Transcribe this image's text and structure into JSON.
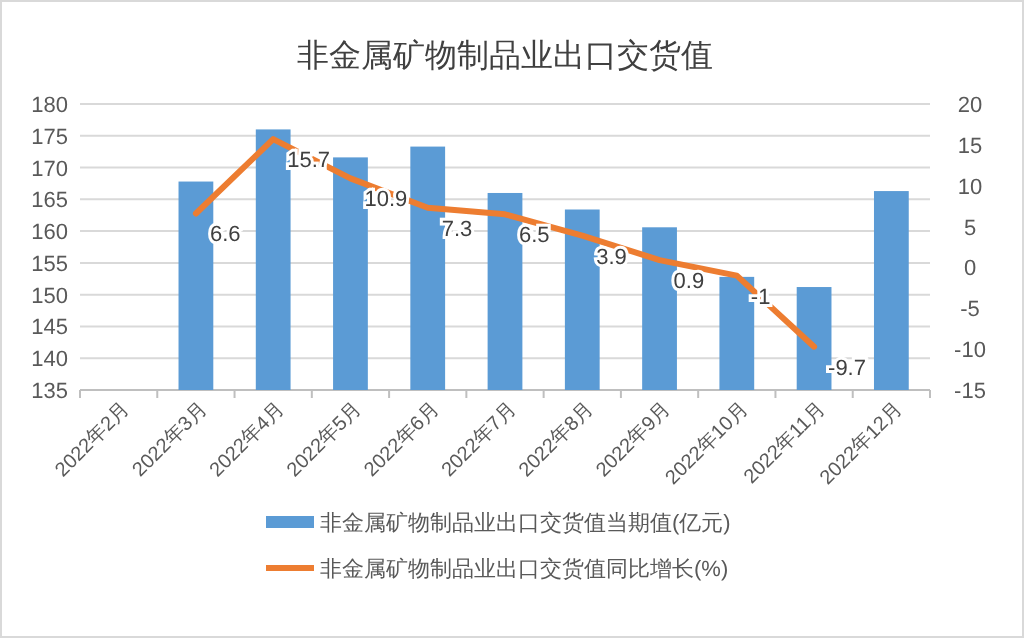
{
  "chart_data": {
    "type": "bar",
    "title": "非金属矿物制品业出口交货值",
    "categories": [
      "2022年2月",
      "2022年3月",
      "2022年4月",
      "2022年5月",
      "2022年6月",
      "2022年7月",
      "2022年8月",
      "2022年9月",
      "2022年10月",
      "2022年11月",
      "2022年12月"
    ],
    "series": [
      {
        "name": "非金属矿物制品业出口交货值当期值(亿元)",
        "color": "#5b9bd5",
        "values": [
          null,
          167.8,
          176,
          171.6,
          173.3,
          166,
          163.4,
          160.6,
          152.8,
          151.2,
          166.3
        ]
      },
      {
        "name": "非金属矿物制品业出口交货值同比增长(%)",
        "type": "line",
        "axis": "y2",
        "color": "#ed7d31",
        "values": [
          null,
          6.6,
          15.7,
          10.9,
          7.3,
          6.5,
          3.9,
          0.9,
          -1,
          -9.7,
          null
        ],
        "data_labels": true
      }
    ],
    "ylim": [
      135,
      180
    ],
    "yticks": [
      135,
      140,
      145,
      150,
      155,
      160,
      165,
      170,
      175,
      180
    ],
    "y2lim": [
      -15,
      20
    ],
    "y2ticks": [
      -15,
      -10,
      -5,
      0,
      5,
      10,
      15,
      20
    ],
    "grid": "y",
    "legend": "bottom",
    "marker": "none",
    "line_style": "solid"
  }
}
